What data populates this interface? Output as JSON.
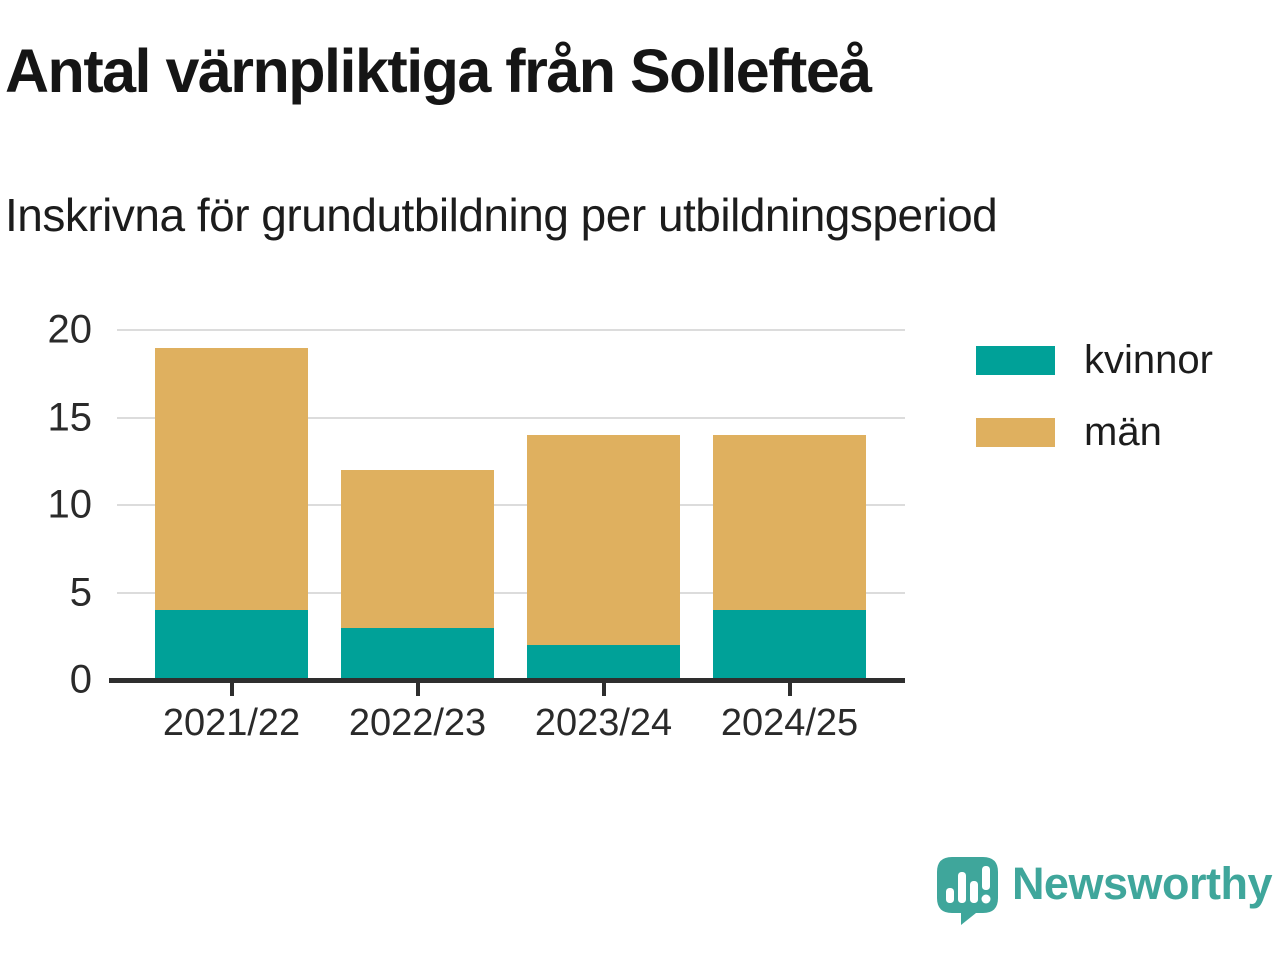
{
  "title": "Antal värnpliktiga från Sollefteå",
  "subtitle": "Inskrivna för grundutbildning per utbildningsperiod",
  "branding": {
    "name": "Newsworthy",
    "color": "#3fa69b"
  },
  "colors": {
    "kvinnor": "#00a198",
    "man": "#dfb05f",
    "grid": "#dcdcdc",
    "axis": "#2e2e2e",
    "text": "#1c1c1c"
  },
  "chart_data": {
    "type": "bar",
    "stacked": true,
    "title": "Antal värnpliktiga från Sollefteå",
    "subtitle": "Inskrivna för grundutbildning per utbildningsperiod",
    "categories": [
      "2021/22",
      "2022/23",
      "2023/24",
      "2024/25"
    ],
    "series": [
      {
        "name": "kvinnor",
        "color": "#00a198",
        "values": [
          4,
          3,
          2,
          4
        ]
      },
      {
        "name": "män",
        "color": "#dfb05f",
        "values": [
          15,
          9,
          12,
          10
        ]
      }
    ],
    "stack_totals": [
      19,
      12,
      14,
      14
    ],
    "xlabel": "",
    "ylabel": "",
    "ylim": [
      0,
      20
    ],
    "yticks": [
      0,
      5,
      10,
      15,
      20
    ],
    "grid": "horizontal",
    "legend_position": "top-right"
  }
}
